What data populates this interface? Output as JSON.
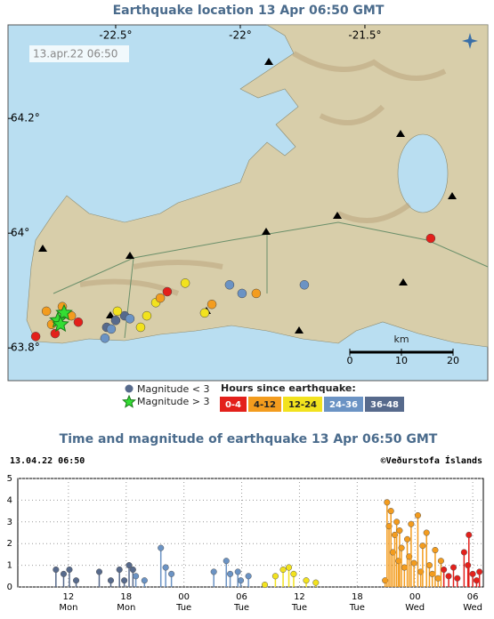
{
  "map": {
    "title": "Earthquake location    13 Apr 06:50 GMT",
    "timestamp": "13.apr.22   06:50",
    "lonlim": [
      -22.932,
      -21.007
    ],
    "latlim": [
      63.743,
      64.363
    ],
    "lonticks": [
      {
        "value": -22.5,
        "label": "-22.5°"
      },
      {
        "value": -22,
        "label": "-22°"
      },
      {
        "value": -21.5,
        "label": "-21.5°"
      }
    ],
    "latticks": [
      {
        "value": 64.2,
        "label": "64.2°"
      },
      {
        "value": 64,
        "label": "64°"
      },
      {
        "value": 63.8,
        "label": "63.8°"
      }
    ],
    "scale": {
      "unit": "km",
      "ticks": [
        0,
        10,
        20
      ]
    },
    "legend": {
      "small": "Magnitude < 3",
      "large": "Magnitude > 3",
      "hours_title": "Hours since earthquake:"
    },
    "quakes": [
      {
        "lon": [
          -22.821,
          -22.743,
          -22.65,
          -22.293,
          -21.236
        ],
        "lat": [
          63.82,
          63.825,
          63.845,
          63.898,
          63.991
        ]
      },
      {
        "lon": [
          -22.778,
          -22.714,
          -22.678,
          -22.757,
          -22.114,
          -21.936,
          -22.321
        ],
        "lat": [
          63.864,
          63.872,
          63.856,
          63.841,
          63.876,
          63.895,
          63.887
        ]
      },
      {
        "lon": [
          -22.493,
          -22.4,
          -22.375,
          -22.339,
          -22.221,
          -22.143
        ],
        "lat": [
          63.864,
          63.836,
          63.856,
          63.879,
          63.913,
          63.861
        ]
      },
      {
        "lon": [
          -22.518,
          -22.543,
          -22.443,
          -22.043,
          -21.993,
          -21.743
        ],
        "lat": [
          63.833,
          63.817,
          63.851,
          63.91,
          63.895,
          63.91
        ]
      },
      {
        "lon": [
          -22.536,
          -22.5,
          -22.464
        ],
        "lat": [
          63.836,
          63.848,
          63.856
        ]
      }
    ],
    "stars": {
      "lon": [
        -22.732,
        -22.707,
        -22.721
      ],
      "lat": [
        63.848,
        63.861,
        63.841
      ]
    }
  },
  "chart_data": {
    "type": "stem",
    "title": "Time and magnitude of earthquake    13 Apr 06:50 GMT",
    "timestamp": "13.04.22 06:50",
    "credit": "©Veðurstofa Íslands",
    "xlim": [
      6.74,
      55.1
    ],
    "ylim": [
      0,
      5
    ],
    "yticks": [
      0,
      1,
      2,
      3,
      4,
      5
    ],
    "grid": true,
    "xticks": [
      {
        "value": 12,
        "label": "12",
        "day": "Mon"
      },
      {
        "value": 18,
        "label": "18",
        "day": "Mon"
      },
      {
        "value": 24,
        "label": "00",
        "day": "Tue"
      },
      {
        "value": 30,
        "label": "06",
        "day": "Tue"
      },
      {
        "value": 36,
        "label": "12",
        "day": "Tue"
      },
      {
        "value": 42,
        "label": "18",
        "day": "Tue"
      },
      {
        "value": 48,
        "label": "00",
        "day": "Wed"
      },
      {
        "value": 54,
        "label": "06",
        "day": "Wed"
      }
    ],
    "series": [
      {
        "name": "0-4",
        "color": "#e3201b",
        "x": [
          51.0,
          51.5,
          52.0,
          52.4,
          53.1,
          53.5,
          53.6,
          54.0,
          54.4,
          54.7
        ],
        "values": [
          0.8,
          0.5,
          0.9,
          0.4,
          1.6,
          1.0,
          2.4,
          0.6,
          0.3,
          0.7
        ]
      },
      {
        "name": "4-12",
        "color": "#f39c1e",
        "x": [
          44.9,
          45.1,
          45.3,
          45.5,
          45.7,
          45.9,
          46.1,
          46.3,
          46.4,
          46.6,
          46.9,
          47.2,
          47.4,
          47.6,
          47.9,
          48.3,
          48.6,
          48.8,
          49.2,
          49.5,
          49.8,
          50.1,
          50.4,
          50.7
        ],
        "values": [
          0.3,
          3.9,
          2.8,
          3.5,
          1.6,
          2.4,
          3.0,
          1.2,
          2.6,
          1.8,
          0.9,
          2.2,
          1.4,
          2.9,
          1.1,
          3.3,
          0.7,
          1.9,
          2.5,
          1.0,
          0.6,
          1.7,
          0.4,
          1.2
        ]
      },
      {
        "name": "12-24",
        "color": "#f2e21e",
        "x": [
          32.4,
          33.5,
          34.3,
          34.9,
          35.4,
          36.7,
          37.7
        ],
        "values": [
          0.1,
          0.5,
          0.8,
          0.9,
          0.6,
          0.3,
          0.2
        ]
      },
      {
        "name": "24-36",
        "color": "#6b93c4",
        "x": [
          19.0,
          19.9,
          21.6,
          22.1,
          22.7,
          27.1,
          28.4,
          28.8,
          29.6,
          29.9,
          30.7
        ],
        "values": [
          0.5,
          0.3,
          1.8,
          0.9,
          0.6,
          0.7,
          1.2,
          0.6,
          0.7,
          0.3,
          0.5
        ]
      },
      {
        "name": "36-48",
        "color": "#576a8c",
        "x": [
          10.7,
          11.5,
          12.1,
          12.8,
          15.2,
          16.4,
          17.3,
          17.8,
          18.3,
          18.7
        ],
        "values": [
          0.8,
          0.6,
          0.8,
          0.3,
          0.7,
          0.3,
          0.8,
          0.3,
          1.0,
          0.8
        ]
      }
    ]
  }
}
